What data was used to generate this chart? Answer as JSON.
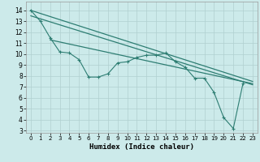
{
  "xlabel": "Humidex (Indice chaleur)",
  "xlim": [
    -0.5,
    23.5
  ],
  "ylim": [
    2.8,
    14.8
  ],
  "yticks": [
    3,
    4,
    5,
    6,
    7,
    8,
    9,
    10,
    11,
    12,
    13,
    14
  ],
  "xticks": [
    0,
    1,
    2,
    3,
    4,
    5,
    6,
    7,
    8,
    9,
    10,
    11,
    12,
    13,
    14,
    15,
    16,
    17,
    18,
    19,
    20,
    21,
    22,
    23
  ],
  "line_color": "#2d7d72",
  "bg_color": "#cceaea",
  "grid_color_major": "#b0d0d0",
  "grid_color_minor": "#c0dcdc",
  "line1_x": [
    0,
    1,
    2,
    3,
    4,
    5,
    6,
    7,
    8,
    9,
    10,
    11,
    12,
    13,
    14,
    15,
    16,
    17,
    18,
    19,
    20,
    21,
    22
  ],
  "line1_y": [
    14.0,
    13.0,
    11.5,
    10.2,
    10.1,
    9.5,
    7.9,
    7.9,
    8.2,
    9.2,
    9.3,
    9.7,
    9.9,
    9.9,
    10.1,
    9.3,
    8.8,
    7.8,
    7.8,
    6.5,
    4.2,
    3.2,
    7.3
  ],
  "diag1_x0": 0,
  "diag1_y0": 14.0,
  "diag1_x1": 23,
  "diag1_y1": 7.5,
  "diag2_x0": 0,
  "diag2_y0": 13.5,
  "diag2_x1": 23,
  "diag2_y1": 7.2,
  "diag3_x0": 2,
  "diag3_y0": 11.3,
  "diag3_x1": 23,
  "diag3_y1": 7.3
}
